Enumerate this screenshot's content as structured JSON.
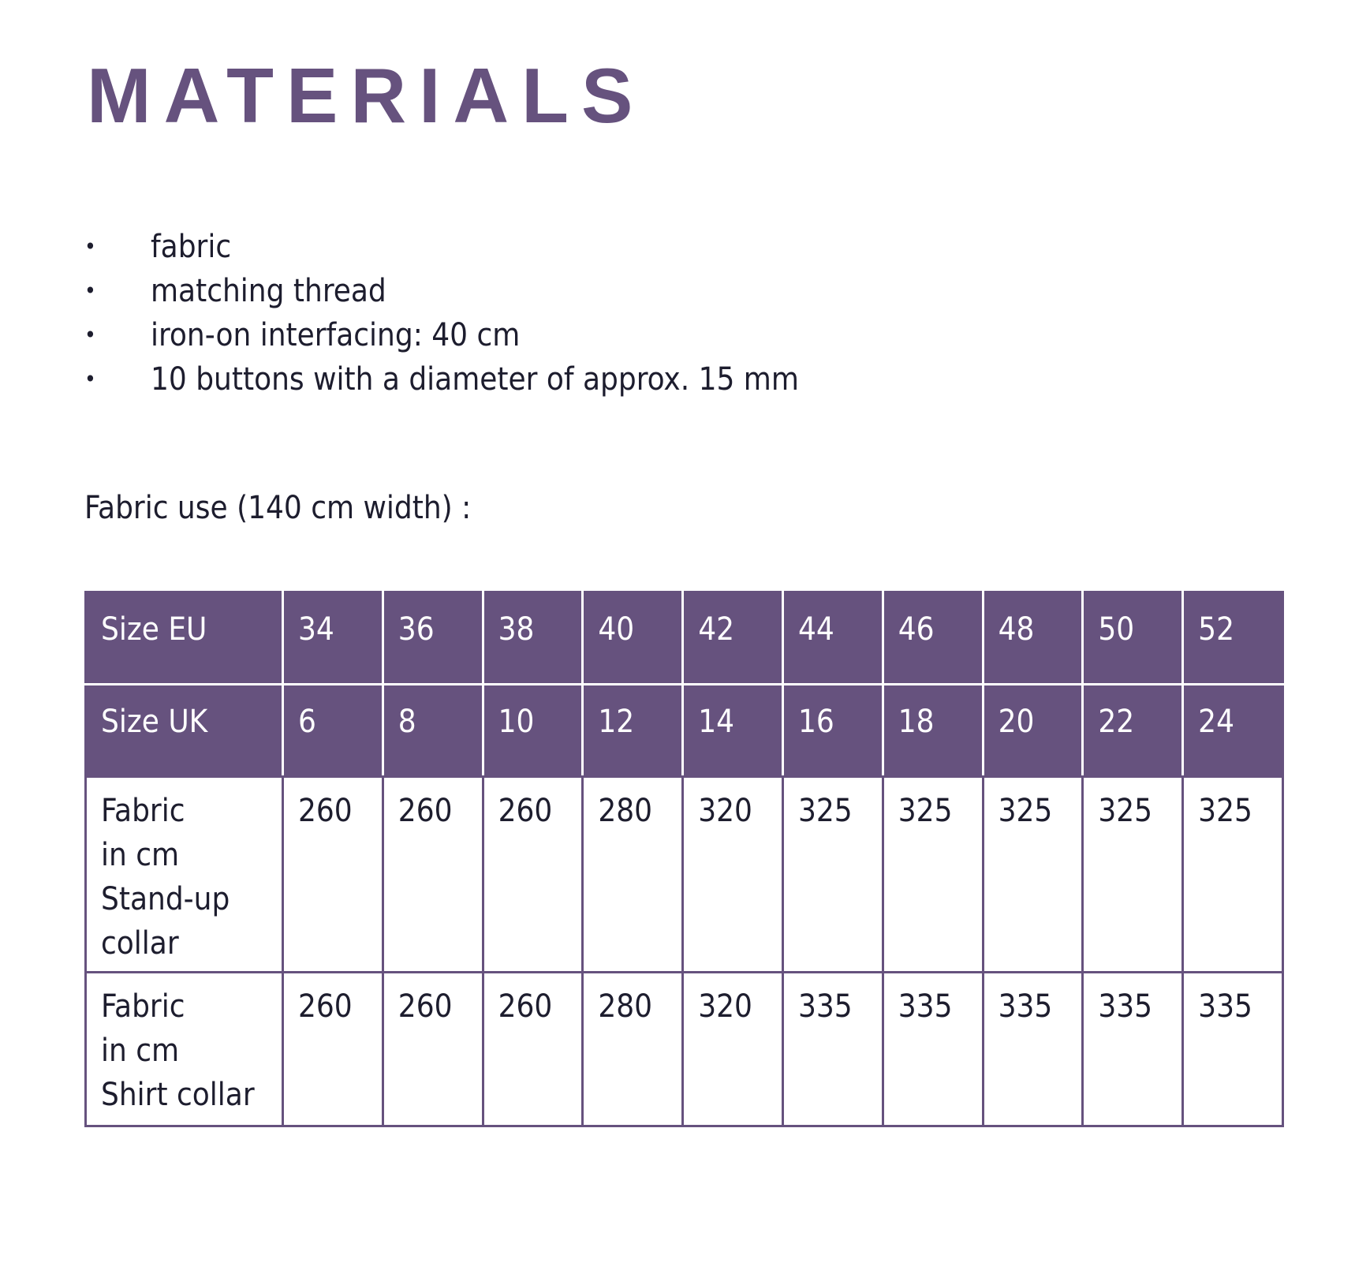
{
  "title": "MATERIALS",
  "materials": [
    "fabric",
    "matching thread",
    "iron-on interfacing: 40 cm",
    "10 buttons with a diameter of approx. 15 mm"
  ],
  "bullet_char": "•",
  "fabric_use_label": "Fabric use (140 cm width) :",
  "colors": {
    "accent": "#66527e",
    "text": "#1d1d2e"
  },
  "table": {
    "rows": [
      {
        "label": "Size EU",
        "values": [
          "34",
          "36",
          "38",
          "40",
          "42",
          "44",
          "46",
          "48",
          "50",
          "52"
        ]
      },
      {
        "label": "Size UK",
        "values": [
          "6",
          "8",
          "10",
          "12",
          "14",
          "16",
          "18",
          "20",
          "22",
          "24"
        ]
      },
      {
        "label_lines": [
          "Fabric",
          "in cm",
          "Stand-up",
          "collar"
        ],
        "values": [
          "260",
          "260",
          "260",
          "280",
          "320",
          "325",
          "325",
          "325",
          "325",
          "325"
        ]
      },
      {
        "label_lines": [
          "Fabric",
          "in cm",
          "Shirt collar"
        ],
        "values": [
          "260",
          "260",
          "260",
          "280",
          "320",
          "335",
          "335",
          "335",
          "335",
          "335"
        ]
      }
    ]
  }
}
